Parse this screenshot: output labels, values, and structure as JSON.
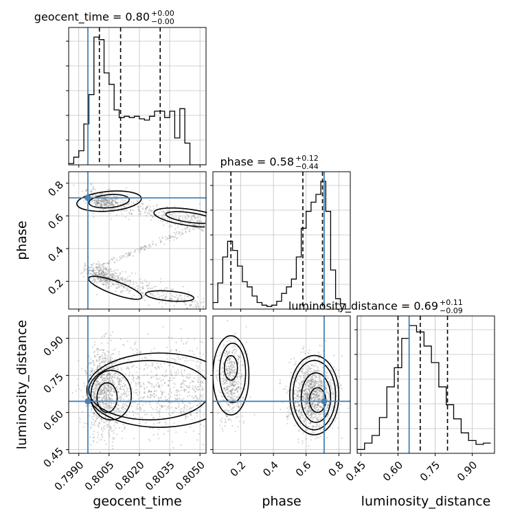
{
  "chart_data": {
    "type": "corner",
    "parameters": [
      "geocent_time",
      "phase",
      "luminosity_distance"
    ],
    "truth": {
      "geocent_time": 0.79945,
      "phase": 0.71,
      "luminosity_distance": 0.645
    },
    "colors": {
      "truth": "#4682b4",
      "hist": "#000000",
      "grid": "#c0c0c0",
      "points": "#888888"
    },
    "grid": true,
    "titles": [
      {
        "param": "geocent_time",
        "text": "geocent_time = 0.80",
        "sup": "+0.00",
        "sub": "−0.00"
      },
      {
        "param": "phase",
        "text": "phase = 0.58",
        "sup": "+0.12",
        "sub": "−0.44"
      },
      {
        "param": "luminosity_distance",
        "text": "luminosity_distance = 0.69",
        "sup": "+0.11",
        "sub": "−0.09"
      }
    ],
    "axes": {
      "geocent_time": {
        "label": "geocent_time",
        "range": [
          0.7985,
          0.8053
        ],
        "ticks": [
          0.799,
          0.8005,
          0.802,
          0.8035,
          0.805
        ],
        "tick_labels": [
          "0.7990",
          "0.8005",
          "0.8020",
          "0.8035",
          "0.8050"
        ]
      },
      "phase": {
        "label": "phase",
        "range": [
          0.03,
          0.87
        ],
        "ticks": [
          0.2,
          0.4,
          0.6,
          0.8
        ],
        "tick_labels": [
          "0.2",
          "0.4",
          "0.6",
          "0.8"
        ]
      },
      "luminosity_distance": {
        "label": "luminosity_distance",
        "range": [
          0.435,
          0.99
        ],
        "ticks": [
          0.45,
          0.6,
          0.75,
          0.9
        ],
        "tick_labels": [
          "0.45",
          "0.60",
          "0.75",
          "0.90"
        ]
      }
    },
    "histograms": [
      {
        "param": "geocent_time",
        "edges": [
          0.7985,
          0.79875,
          0.799,
          0.79925,
          0.7995,
          0.79975,
          0.8,
          0.80025,
          0.8005,
          0.80075,
          0.801,
          0.80125,
          0.8015,
          0.80175,
          0.802,
          0.80225,
          0.8025,
          0.80275,
          0.803,
          0.80325,
          0.8035,
          0.80375,
          0.804,
          0.80425,
          0.8045,
          0.80475,
          0.805,
          0.80525
        ],
        "counts": [
          1,
          6,
          11,
          32,
          55,
          100,
          98,
          72,
          63,
          43,
          37,
          38,
          37,
          38,
          36,
          35,
          38,
          42,
          42,
          37,
          42,
          21,
          44,
          17,
          0,
          0,
          0
        ]
      },
      {
        "param": "phase",
        "edges": [
          0.03,
          0.06,
          0.09,
          0.12,
          0.15,
          0.18,
          0.21,
          0.24,
          0.27,
          0.3,
          0.33,
          0.36,
          0.39,
          0.42,
          0.45,
          0.48,
          0.51,
          0.54,
          0.57,
          0.6,
          0.63,
          0.66,
          0.69,
          0.72,
          0.75,
          0.78,
          0.81,
          0.84,
          0.87
        ],
        "counts": [
          5,
          20,
          40,
          52,
          45,
          33,
          21,
          17,
          10,
          5,
          3,
          2,
          3,
          6,
          12,
          17,
          23,
          40,
          62,
          75,
          82,
          88,
          98,
          75,
          30,
          8,
          4,
          0
        ]
      },
      {
        "param": "luminosity_distance",
        "edges": [
          0.435,
          0.465,
          0.495,
          0.525,
          0.555,
          0.585,
          0.615,
          0.645,
          0.675,
          0.705,
          0.735,
          0.765,
          0.795,
          0.825,
          0.855,
          0.885,
          0.915,
          0.945,
          0.975
        ],
        "counts": [
          3,
          8,
          14,
          28,
          52,
          67,
          90,
          100,
          95,
          84,
          71,
          52,
          38,
          27,
          16,
          10,
          7,
          8
        ]
      }
    ],
    "quantile_lines": {
      "geocent_time": [
        0.80002,
        0.80107,
        0.80303
      ],
      "phase": [
        0.14,
        0.58,
        0.7
      ],
      "luminosity_distance": [
        0.6,
        0.69,
        0.8
      ]
    },
    "scatter_panels": [
      {
        "x": "geocent_time",
        "y": "phase"
      },
      {
        "x": "geocent_time",
        "y": "luminosity_distance"
      },
      {
        "x": "phase",
        "y": "luminosity_distance"
      }
    ]
  }
}
